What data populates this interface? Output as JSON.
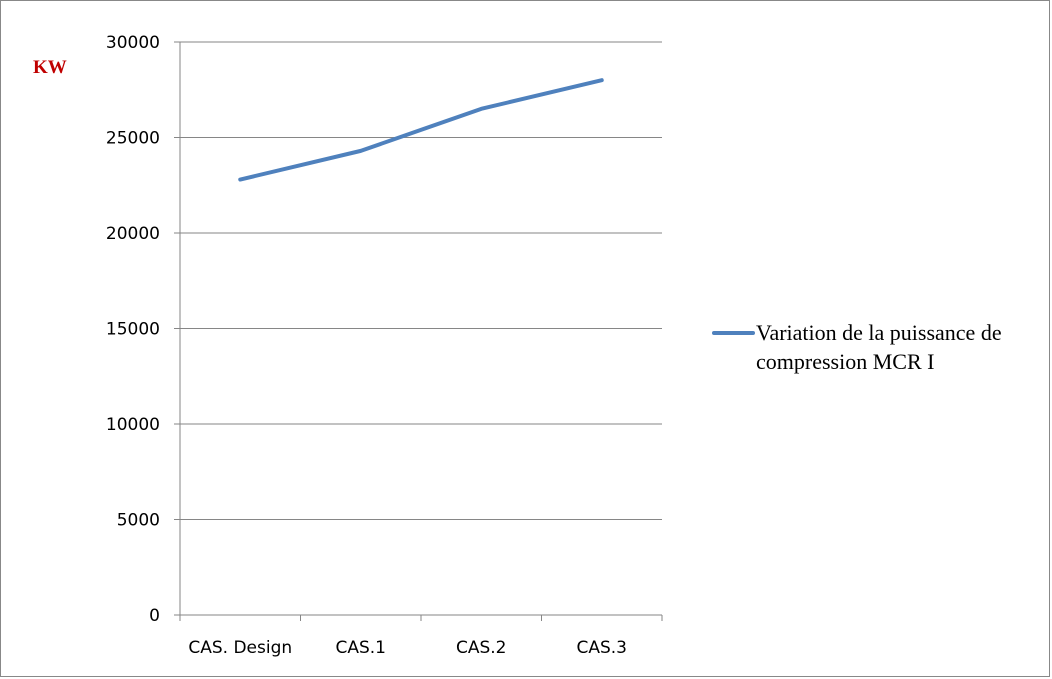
{
  "chart_data": {
    "type": "line",
    "title": "",
    "xlabel": "",
    "ylabel": "KW",
    "ylabel_color": "#C00000",
    "categories": [
      "CAS. Design",
      "CAS.1",
      "CAS.2",
      "CAS.3"
    ],
    "series": [
      {
        "name": "Variation de la puissance de compression MCR I",
        "values": [
          22800,
          24300,
          26500,
          28000
        ],
        "color": "#4F81BD"
      }
    ],
    "ylim": [
      0,
      30000
    ],
    "yticks": [
      0,
      5000,
      10000,
      15000,
      20000,
      25000,
      30000
    ],
    "ytick_labels": [
      "0",
      "5000",
      "10000",
      "15000",
      "20000",
      "25000",
      "30000"
    ],
    "grid": true,
    "legend_position": "right",
    "legend_lines": [
      "Variation de la puissance de",
      "compression MCR I"
    ]
  }
}
